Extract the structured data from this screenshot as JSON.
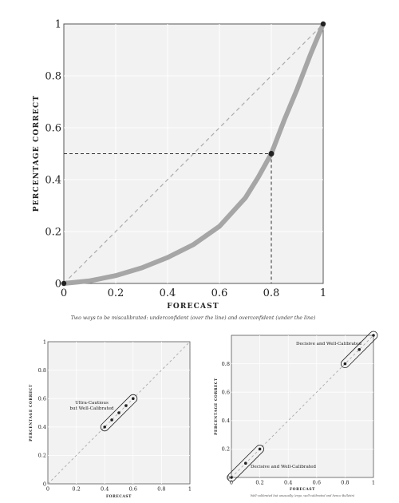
{
  "chart_data": [
    {
      "type": "line",
      "xlabel": "FORECAST",
      "ylabel": "PERCENTAGE CORRECT",
      "xlim": [
        0,
        1
      ],
      "ylim": [
        0,
        1
      ],
      "xticks": [
        "0",
        "0.2",
        "0.4",
        "0.6",
        "0.8",
        "1"
      ],
      "yticks": [
        "0",
        "0.2",
        "0.4",
        "0.6",
        "0.8",
        "1"
      ],
      "grid": true,
      "caption": "Two ways to be miscalibrated: underconfident (over the line) and overconfident (under the line)",
      "reference_line": {
        "x": [
          0,
          1
        ],
        "y": [
          0,
          1
        ]
      },
      "series": [
        {
          "x": [
            0,
            0.1,
            0.2,
            0.3,
            0.4,
            0.5,
            0.6,
            0.7,
            0.75,
            0.8,
            0.85,
            0.9,
            0.95,
            1.0
          ],
          "y": [
            0,
            0.01,
            0.03,
            0.06,
            0.1,
            0.15,
            0.22,
            0.33,
            0.41,
            0.5,
            0.63,
            0.75,
            0.88,
            1.0
          ]
        }
      ],
      "highlight_point": {
        "x": 0.8,
        "y": 0.5
      }
    },
    {
      "type": "scatter",
      "xlabel": "FORECAST",
      "ylabel": "PERCENTAGE CORRECT",
      "xlim": [
        0,
        1
      ],
      "ylim": [
        0,
        1
      ],
      "xticks": [
        "0",
        "0.2",
        "0.4",
        "0.6",
        "0.8",
        "1"
      ],
      "yticks": [
        "0",
        "0.2",
        "0.4",
        "0.6",
        "0.8",
        "1"
      ],
      "grid": true,
      "annotation": "Ultra-Cautious but Well-Calibrated",
      "points": {
        "x": [
          0.4,
          0.45,
          0.5,
          0.55,
          0.6
        ],
        "y": [
          0.4,
          0.45,
          0.5,
          0.55,
          0.6
        ]
      }
    },
    {
      "type": "scatter",
      "xlabel": "FORECAST",
      "ylabel": "PERCENTAGE CORRECT",
      "xlim": [
        0,
        1
      ],
      "ylim": [
        0,
        1
      ],
      "xticks": [
        "0",
        "0.2",
        "0.4",
        "0.6",
        "0.8",
        "1"
      ],
      "yticks": [
        "0",
        "0.2",
        "0.4",
        "0.6",
        "0.8"
      ],
      "grid": true,
      "caption": "Well-calibrated but unusually (ergo, well-calibrated and hence Bulletin)",
      "annotations": [
        "Decisive and Well-Calibrated",
        "Decisive and Well-Calibrated"
      ],
      "points": {
        "x": [
          0,
          0.1,
          0.2,
          0.8,
          0.9,
          1.0
        ],
        "y": [
          0,
          0.1,
          0.2,
          0.8,
          0.9,
          1.0
        ]
      }
    }
  ]
}
